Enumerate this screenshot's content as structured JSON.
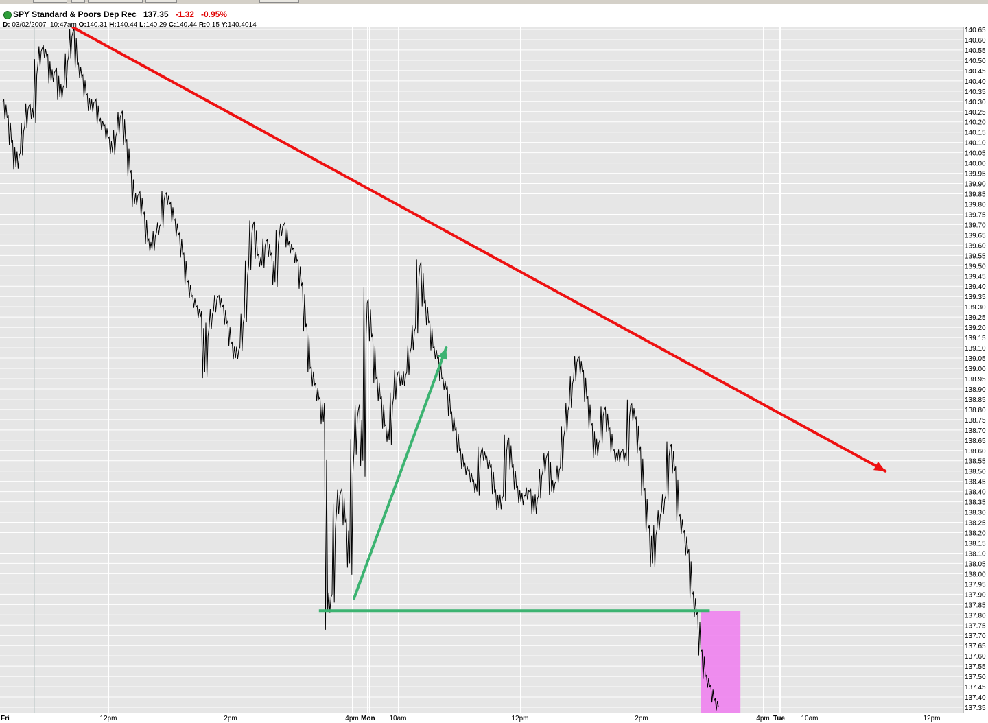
{
  "header": {
    "symbol": "SPY",
    "name": "Standard & Poors Dep Rec",
    "last": "137.35",
    "change": "-1.32",
    "change_pct": "-0.95%",
    "status_color": "#2e9e3a"
  },
  "ohlc": {
    "d_label": "D:",
    "date": "03/02/2007",
    "time": "10:47am",
    "o_label": "O:",
    "open": "140.31",
    "h_label": "H:",
    "high": "140.44",
    "l_label": "L:",
    "low": "140.29",
    "c_label": "C:",
    "close": "140.44",
    "r_label": "R:",
    "range": "0.15",
    "y_label": "Y:",
    "y": "140.4014"
  },
  "chart_data": {
    "type": "line",
    "ylim": [
      137.32,
      140.66
    ],
    "grid": true,
    "colors": {
      "price_line": "#000000",
      "resistance_arrow": "#ee1111",
      "rally_arrow": "#3cb371",
      "support_line": "#3cb371",
      "breakdown_highlight": "#ee82ee",
      "panel_bg": "#e6e6e6"
    },
    "y_ticks": [
      "140.65",
      "140.60",
      "140.55",
      "140.50",
      "140.45",
      "140.40",
      "140.35",
      "140.30",
      "140.25",
      "140.20",
      "140.15",
      "140.10",
      "140.05",
      "140.00",
      "139.95",
      "139.90",
      "139.85",
      "139.80",
      "139.75",
      "139.70",
      "139.65",
      "139.60",
      "139.55",
      "139.50",
      "139.45",
      "139.40",
      "139.35",
      "139.30",
      "139.25",
      "139.20",
      "139.15",
      "139.10",
      "139.05",
      "139.00",
      "138.95",
      "138.90",
      "138.85",
      "138.80",
      "138.75",
      "138.70",
      "138.65",
      "138.60",
      "138.55",
      "138.50",
      "138.45",
      "138.40",
      "138.35",
      "138.30",
      "138.25",
      "138.20",
      "138.15",
      "138.10",
      "138.05",
      "138.00",
      "137.95",
      "137.90",
      "137.85",
      "137.80",
      "137.75",
      "137.70",
      "137.65",
      "137.60",
      "137.55",
      "137.50",
      "137.45",
      "137.40",
      "137.35"
    ],
    "x_ticks": [
      {
        "label": "Fri",
        "bold": true
      },
      {
        "label": "12pm",
        "bold": false
      },
      {
        "label": "2pm",
        "bold": false
      },
      {
        "label": "4pm",
        "bold": false
      },
      {
        "label": "Mon",
        "bold": true
      },
      {
        "label": "10am",
        "bold": false
      },
      {
        "label": "12pm",
        "bold": false
      },
      {
        "label": "2pm",
        "bold": false
      },
      {
        "label": "4pm",
        "bold": false
      },
      {
        "label": "Tue",
        "bold": true
      },
      {
        "label": "10am",
        "bold": false
      },
      {
        "label": "12pm",
        "bold": false
      }
    ],
    "series": [
      {
        "values": [
          140.3,
          140.22,
          140.1,
          139.98,
          140.05,
          140.18,
          140.28,
          140.22,
          140.48,
          140.56,
          140.52,
          140.4,
          140.45,
          140.32,
          140.38,
          140.52,
          140.64,
          140.48,
          140.42,
          140.33,
          140.26,
          140.3,
          140.2,
          140.18,
          140.12,
          140.05,
          140.15,
          140.24,
          140.1,
          139.95,
          139.8,
          139.85,
          139.75,
          139.62,
          139.58,
          139.66,
          139.7,
          139.85,
          139.8,
          139.72,
          139.65,
          139.55,
          139.42,
          139.35,
          139.3,
          139.25,
          138.98,
          139.2,
          139.28,
          139.35,
          139.3,
          139.22,
          139.12,
          139.05,
          139.1,
          139.25,
          139.5,
          139.7,
          139.55,
          139.5,
          139.62,
          139.55,
          139.42,
          139.65,
          139.7,
          139.6,
          139.58,
          139.52,
          139.4,
          139.2,
          139.0,
          138.92,
          138.85,
          138.74,
          137.82,
          137.9,
          138.3,
          138.4,
          138.25,
          138.05,
          138.6,
          138.8,
          138.55,
          139.32,
          139.15,
          138.95,
          138.85,
          138.72,
          138.65,
          138.86,
          138.98,
          138.92,
          138.98,
          139.1,
          139.2,
          139.5,
          139.32,
          139.22,
          139.1,
          139.05,
          138.95,
          138.9,
          138.78,
          138.7,
          138.6,
          138.52,
          138.5,
          138.45,
          138.4,
          138.6,
          138.56,
          138.52,
          138.4,
          138.32,
          138.38,
          138.65,
          138.52,
          138.42,
          138.35,
          138.38,
          138.4,
          138.3,
          138.38,
          138.5,
          138.58,
          138.4,
          138.45,
          138.52,
          138.7,
          138.82,
          138.95,
          139.05,
          138.98,
          138.85,
          138.72,
          138.58,
          138.65,
          138.8,
          138.7,
          138.6,
          138.55,
          138.6,
          138.55,
          138.82,
          138.75,
          138.6,
          138.4,
          138.22,
          138.05,
          138.22,
          138.3,
          138.38,
          138.62,
          138.5,
          138.28,
          138.2,
          138.1,
          137.9,
          137.8,
          137.62,
          137.5,
          137.45,
          137.38,
          137.35
        ]
      }
    ],
    "annotations": [
      {
        "type": "arrow",
        "color": "red",
        "from": {
          "x_index": 16,
          "y": 140.66
        },
        "to": {
          "x_index": 201,
          "y": 138.5
        }
      },
      {
        "type": "arrow",
        "color": "green",
        "from": {
          "x_index": 80,
          "y": 137.88
        },
        "to": {
          "x_index": 101,
          "y": 139.1
        }
      },
      {
        "type": "hline",
        "color": "green",
        "y": 137.82,
        "from_x_index": 72,
        "to_x_index": 161
      },
      {
        "type": "band",
        "color": "violet",
        "y_from": 137.32,
        "y_to": 137.82,
        "from_x_index": 159,
        "to_x_index": 168
      }
    ]
  }
}
